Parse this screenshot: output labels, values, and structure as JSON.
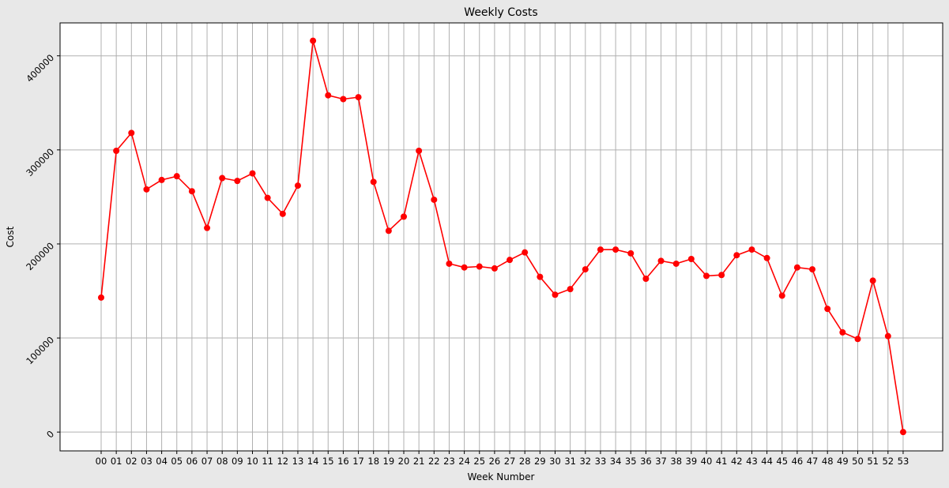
{
  "chart_data": {
    "type": "line",
    "title": "Weekly Costs",
    "xlabel": "Week Number",
    "ylabel": "Cost",
    "grid": true,
    "ylim": [
      -20000,
      435000
    ],
    "yticks": [
      0,
      100000,
      200000,
      300000,
      400000
    ],
    "ytick_labels": [
      "0",
      "100000",
      "200000",
      "300000",
      "400000"
    ],
    "categories": [
      "00",
      "01",
      "02",
      "03",
      "04",
      "05",
      "06",
      "07",
      "08",
      "09",
      "10",
      "11",
      "12",
      "13",
      "14",
      "15",
      "16",
      "17",
      "18",
      "19",
      "20",
      "21",
      "22",
      "23",
      "24",
      "25",
      "26",
      "27",
      "28",
      "29",
      "30",
      "31",
      "32",
      "33",
      "34",
      "35",
      "36",
      "37",
      "38",
      "39",
      "40",
      "41",
      "42",
      "43",
      "44",
      "45",
      "46",
      "47",
      "48",
      "49",
      "50",
      "51",
      "52",
      "53"
    ],
    "series": [
      {
        "color": "#ff0000",
        "marker": "circle",
        "values": [
          143000,
          299000,
          318000,
          258000,
          268000,
          272000,
          256000,
          217000,
          270000,
          267000,
          275000,
          249000,
          232000,
          262000,
          416000,
          358000,
          354000,
          356000,
          266000,
          214000,
          229000,
          299000,
          247000,
          179000,
          175000,
          176000,
          174000,
          183000,
          191000,
          165000,
          146000,
          152000,
          173000,
          194000,
          194000,
          190000,
          163000,
          182000,
          179000,
          184000,
          166000,
          167000,
          188000,
          194000,
          185000,
          145000,
          175000,
          173000,
          131000,
          106000,
          99000,
          161000,
          102000,
          0
        ]
      }
    ]
  }
}
